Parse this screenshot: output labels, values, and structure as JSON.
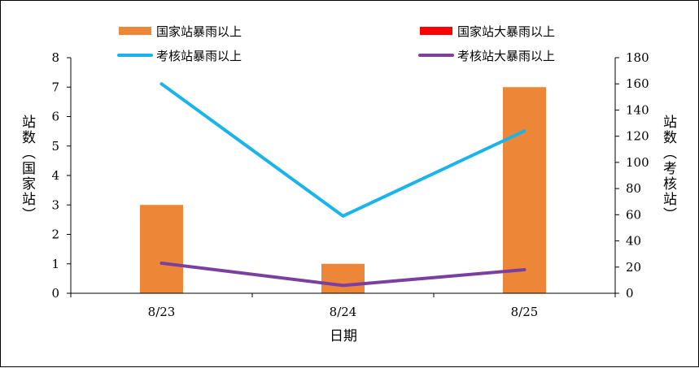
{
  "chart_data": {
    "type": "bar+line",
    "categories": [
      "8/23",
      "8/24",
      "8/25"
    ],
    "xlabel": "日期",
    "ylabel_left": "站数（国家站）",
    "ylabel_right": "站数（考核站）",
    "ylim_left": [
      0,
      8
    ],
    "yticks_left": [
      "0",
      "1",
      "2",
      "3",
      "4",
      "5",
      "6",
      "7",
      "8"
    ],
    "ylim_right": [
      0,
      180
    ],
    "yticks_right": [
      "0",
      "20",
      "40",
      "60",
      "80",
      "100",
      "120",
      "140",
      "160",
      "180"
    ],
    "legend_position": "top",
    "series": [
      {
        "name": "国家站暴雨以上",
        "kind": "bar",
        "axis": "left",
        "color": "#ED8637",
        "values": [
          3,
          1,
          7
        ]
      },
      {
        "name": "国家站大暴雨以上",
        "kind": "bar",
        "axis": "left",
        "color": "#FF0000",
        "values": [
          0,
          0,
          0
        ]
      },
      {
        "name": "考核站暴雨以上",
        "kind": "line",
        "axis": "right",
        "color": "#1AB4EA",
        "values": [
          160,
          59,
          124
        ]
      },
      {
        "name": "考核站大暴雨以上",
        "kind": "line",
        "axis": "right",
        "color": "#7B3FA0",
        "values": [
          23,
          6,
          18
        ]
      }
    ]
  }
}
